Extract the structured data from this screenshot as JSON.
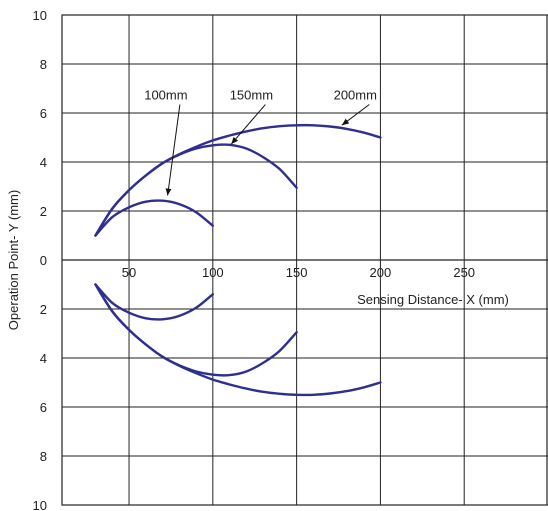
{
  "chart_data": {
    "type": "line",
    "title": "",
    "xlabel": "Sensing Distance- X (mm)",
    "ylabel": "Operation Point- Y (mm)",
    "xlim": [
      10,
      300
    ],
    "ylim": [
      -10,
      10
    ],
    "x_ticks": [
      50,
      100,
      150,
      200,
      250
    ],
    "x_gridlines": [
      50,
      100,
      150,
      200,
      250
    ],
    "y_ticks": [
      10,
      8,
      6,
      4,
      2,
      0,
      -2,
      -4,
      -6,
      -8,
      -10
    ],
    "y_tick_labels": [
      "10",
      "8",
      "6",
      "4",
      "2",
      "0",
      "2",
      "4",
      "6",
      "8",
      "10"
    ],
    "grid": true,
    "series": [
      {
        "name": "100mm",
        "x": [
          30,
          40,
          50,
          60,
          70,
          80,
          90,
          100
        ],
        "y": [
          1.0,
          1.75,
          2.15,
          2.38,
          2.42,
          2.28,
          1.95,
          1.4
        ]
      },
      {
        "name": "150mm",
        "x": [
          30,
          40,
          50,
          60,
          70,
          80,
          90,
          100,
          110,
          120,
          130,
          140,
          150
        ],
        "y": [
          1.0,
          2.1,
          2.85,
          3.45,
          3.95,
          4.3,
          4.55,
          4.68,
          4.7,
          4.55,
          4.2,
          3.7,
          2.95
        ]
      },
      {
        "name": "200mm",
        "x": [
          30,
          40,
          50,
          60,
          70,
          80,
          90,
          100,
          110,
          120,
          130,
          140,
          150,
          160,
          170,
          180,
          190,
          200
        ],
        "y": [
          1.0,
          2.1,
          2.85,
          3.45,
          3.95,
          4.32,
          4.62,
          4.88,
          5.08,
          5.25,
          5.38,
          5.46,
          5.5,
          5.5,
          5.45,
          5.35,
          5.2,
          5.0
        ]
      }
    ],
    "mirrored_about_x_axis": true,
    "curve_color": "#2f2f8f"
  }
}
